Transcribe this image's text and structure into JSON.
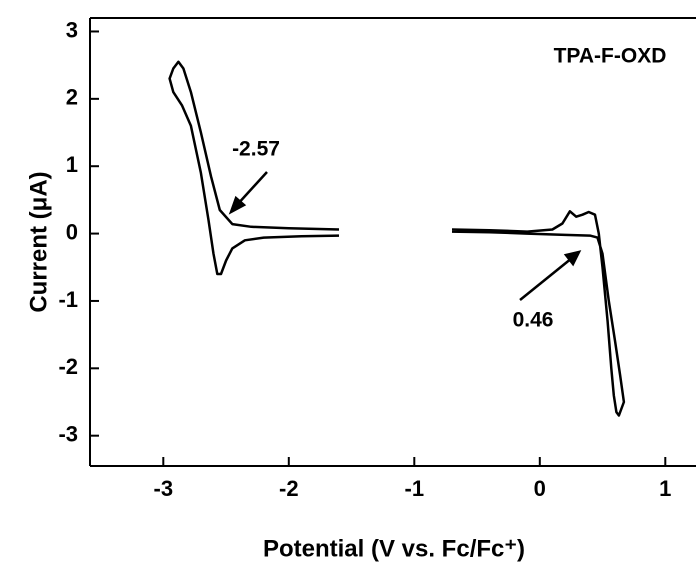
{
  "chart_data": {
    "type": "line",
    "x_label": "Potential (V vs. Fc/Fc⁺)",
    "y_label": "Current (μA)",
    "annotations": [
      "TPA-F-OXD",
      "-2.57",
      "0.46"
    ],
    "xlim": [
      -3.6,
      1.25
    ],
    "ylim": [
      -3.45,
      3.2
    ],
    "xticks": [
      -3,
      -2,
      -1,
      0,
      1
    ],
    "yticks": [
      -3,
      -2,
      -1,
      0,
      1,
      2,
      3
    ],
    "series": [
      {
        "color": "#000000",
        "x": [
          -1.6,
          -2.0,
          -2.3,
          -2.45,
          -2.55,
          -2.62,
          -2.7,
          -2.78,
          -2.84,
          -2.88,
          -2.92,
          -2.95,
          -2.92,
          -2.85,
          -2.78,
          -2.7,
          -2.64,
          -2.6,
          -2.57,
          -2.54,
          -2.5,
          -2.45,
          -2.35,
          -2.2,
          -1.9,
          -1.6
        ],
        "values": [
          0.06,
          0.08,
          0.1,
          0.14,
          0.35,
          0.85,
          1.5,
          2.1,
          2.45,
          2.55,
          2.45,
          2.3,
          2.1,
          1.9,
          1.6,
          0.9,
          0.2,
          -0.3,
          -0.6,
          -0.6,
          -0.4,
          -0.22,
          -0.1,
          -0.06,
          -0.04,
          -0.03
        ]
      },
      {
        "color": "#000000",
        "x": [
          -0.7,
          -0.4,
          -0.1,
          0.1,
          0.18,
          0.24,
          0.29,
          0.34,
          0.39,
          0.44,
          0.47,
          0.5,
          0.54,
          0.57,
          0.59,
          0.61,
          0.63,
          0.67,
          0.64,
          0.6,
          0.55,
          0.5,
          0.46,
          0.4,
          0.2,
          -0.1,
          -0.4,
          -0.7
        ],
        "values": [
          0.06,
          0.05,
          0.03,
          0.06,
          0.15,
          0.33,
          0.25,
          0.28,
          0.32,
          0.28,
          0.0,
          -0.5,
          -1.3,
          -2.0,
          -2.4,
          -2.65,
          -2.7,
          -2.5,
          -2.1,
          -1.6,
          -1.0,
          -0.3,
          -0.06,
          -0.03,
          -0.02,
          0.0,
          0.02,
          0.03
        ]
      }
    ]
  }
}
